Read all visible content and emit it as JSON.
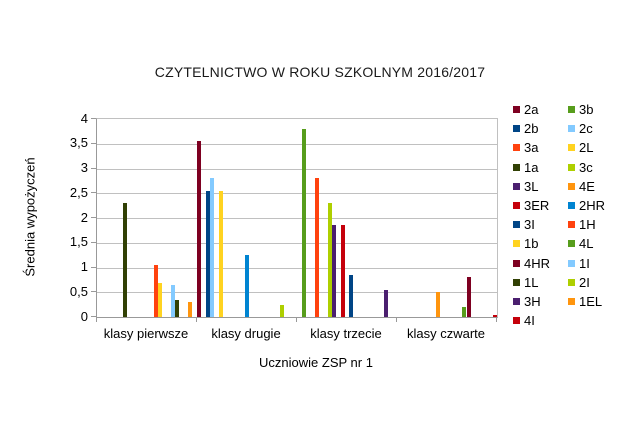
{
  "chart_data": {
    "type": "bar",
    "title": "CZYTELNICTWO W ROKU SZKOLNYM 2016/2017",
    "xlabel": "Uczniowie ZSP nr 1",
    "ylabel": "Średnia wypożyczeń",
    "categories": [
      "klasy pierwsze",
      "klasy drugie",
      "klasy trzecie",
      "klasy czwarte"
    ],
    "ylim": [
      0,
      4
    ],
    "ytick_step": 0.5,
    "ytick_labels": [
      "0",
      "0,5",
      "1",
      "1,5",
      "2",
      "2,5",
      "3",
      "3,5",
      "4"
    ],
    "grid": true,
    "legend_position": "right",
    "legend_columns": 2,
    "series": [
      {
        "name": "2a",
        "color": "#7E0021",
        "values": [
          0,
          3.55,
          0,
          0
        ]
      },
      {
        "name": "3b",
        "color": "#579D1C",
        "values": [
          0,
          0,
          3.8,
          0
        ]
      },
      {
        "name": "2b",
        "color": "#004586",
        "values": [
          0,
          2.55,
          0,
          0
        ]
      },
      {
        "name": "2c",
        "color": "#83CAFF",
        "values": [
          0,
          2.8,
          0,
          0
        ]
      },
      {
        "name": "3a",
        "color": "#FF420E",
        "values": [
          0,
          0,
          2.8,
          0
        ]
      },
      {
        "name": "2L",
        "color": "#FFD320",
        "values": [
          0,
          2.55,
          0,
          0
        ]
      },
      {
        "name": "1a",
        "color": "#314004",
        "values": [
          2.3,
          0,
          0,
          0
        ]
      },
      {
        "name": "3c",
        "color": "#AECF00",
        "values": [
          0,
          0,
          2.3,
          0
        ]
      },
      {
        "name": "3L",
        "color": "#4B1F6F",
        "values": [
          0,
          0,
          1.85,
          0
        ]
      },
      {
        "name": "4E",
        "color": "#FF950E",
        "values": [
          0,
          0,
          0,
          0.5
        ]
      },
      {
        "name": "3ER",
        "color": "#C5000B",
        "values": [
          0,
          0,
          1.85,
          0
        ]
      },
      {
        "name": "2HR",
        "color": "#0084D1",
        "values": [
          0,
          1.25,
          0,
          0
        ]
      },
      {
        "name": "3I",
        "color": "#004586",
        "values": [
          0,
          0,
          0.85,
          0
        ]
      },
      {
        "name": "1H",
        "color": "#FF420E",
        "values": [
          1.05,
          0,
          0,
          0
        ]
      },
      {
        "name": "1b",
        "color": "#FFD320",
        "values": [
          0.68,
          0,
          0,
          0
        ]
      },
      {
        "name": "4L",
        "color": "#579D1C",
        "values": [
          0,
          0,
          0,
          0.2
        ]
      },
      {
        "name": "4HR",
        "color": "#7E0021",
        "values": [
          0,
          0,
          0,
          0.8
        ]
      },
      {
        "name": "1I",
        "color": "#83CAFF",
        "values": [
          0.65,
          0,
          0,
          0
        ]
      },
      {
        "name": "1L",
        "color": "#314004",
        "values": [
          0.35,
          0,
          0,
          0
        ]
      },
      {
        "name": "2I",
        "color": "#AECF00",
        "values": [
          0,
          0.25,
          0,
          0
        ]
      },
      {
        "name": "3H",
        "color": "#4B1F6F",
        "values": [
          0,
          0,
          0.55,
          0
        ]
      },
      {
        "name": "1EL",
        "color": "#FF950E",
        "values": [
          0.3,
          0,
          0,
          0
        ]
      },
      {
        "name": "4I",
        "color": "#C5000B",
        "values": [
          0,
          0,
          0,
          0.05
        ]
      }
    ]
  },
  "colors": {
    "background": "#ffffff",
    "axis": "#999999",
    "gridline": "#c0c0c0",
    "text": "#000000"
  }
}
